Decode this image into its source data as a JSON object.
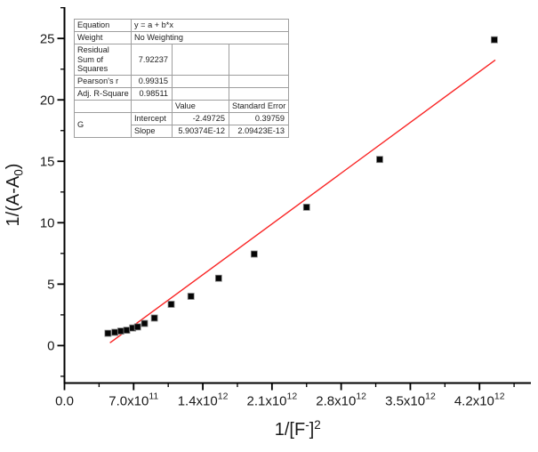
{
  "colors": {
    "fit_line": "#f92525",
    "marker_fill": "#050505",
    "marker_edge": "#8a8a8a",
    "axis": "#000000",
    "table_border": "#9e9e9e",
    "text": "#1a1a1a"
  },
  "stats_table": {
    "equation_label": "Equation",
    "equation_value": "y = a + b*x",
    "weight_label": "Weight",
    "weight_value": "No Weighting",
    "rss_label": "Residual Sum of Squares",
    "rss_value": "7.92237",
    "pearson_label": "Pearson's r",
    "pearson_value": "0.99315",
    "adj_r_label": "Adj. R-Square",
    "adj_r_value": "0.98511",
    "value_header": "Value",
    "stderr_header": "Standard Error",
    "dataset_label": "G",
    "intercept_label": "Intercept",
    "intercept_value": "-2.49725",
    "intercept_stderr": "0.39759",
    "slope_label": "Slope",
    "slope_value": "5.90374E-12",
    "slope_stderr": "2.09423E-13"
  },
  "chart_data": {
    "type": "scatter",
    "title": "",
    "legend": "none",
    "grid": false,
    "x_axis": {
      "label": "1/[F-]2",
      "label_parts": [
        {
          "t": "1/[F",
          "s": "n"
        },
        {
          "t": "-",
          "s": "sup"
        },
        {
          "t": "]",
          "s": "n"
        },
        {
          "t": "2",
          "s": "sup"
        }
      ],
      "min": 0,
      "max": 4720000000000.0,
      "major_tick_step": 700000000000.0,
      "minor_tick_step": 350000000000.0,
      "tick_labels": [
        {
          "mantissa": "0.0",
          "exponent": ""
        },
        {
          "mantissa": "7.0x10",
          "exponent": "11"
        },
        {
          "mantissa": "1.4x10",
          "exponent": "12"
        },
        {
          "mantissa": "2.1x10",
          "exponent": "12"
        },
        {
          "mantissa": "2.8x10",
          "exponent": "12"
        },
        {
          "mantissa": "3.5x10",
          "exponent": "12"
        },
        {
          "mantissa": "4.2x10",
          "exponent": "12"
        }
      ]
    },
    "y_axis": {
      "label": "1/(A-A0)",
      "label_parts": [
        {
          "t": "1/(A-A",
          "s": "n"
        },
        {
          "t": "0",
          "s": "sub"
        },
        {
          "t": ")",
          "s": "n"
        }
      ],
      "min": -3.05,
      "max": 27.55,
      "major_tick_step": 5,
      "minor_tick_step": 2.5,
      "tick_labels": [
        "0",
        "5",
        "10",
        "15",
        "20",
        "25"
      ]
    },
    "series": [
      {
        "name": "G",
        "marker": "filled-square",
        "points": [
          [
            440000000000.0,
            1.0
          ],
          [
            510000000000.0,
            1.08
          ],
          [
            570000000000.0,
            1.18
          ],
          [
            630000000000.0,
            1.25
          ],
          [
            690000000000.0,
            1.43
          ],
          [
            740000000000.0,
            1.52
          ],
          [
            810000000000.0,
            1.8
          ],
          [
            910000000000.0,
            2.24
          ],
          [
            1080000000000.0,
            3.36
          ],
          [
            1280000000000.0,
            4.01
          ],
          [
            1560000000000.0,
            5.48
          ],
          [
            1920000000000.0,
            7.45
          ],
          [
            2450000000000.0,
            11.26
          ],
          [
            3190000000000.0,
            15.15
          ],
          [
            4350000000000.0,
            24.89
          ]
        ]
      }
    ],
    "fit_line": {
      "equation": "y = a + b*x",
      "intercept": -2.49725,
      "slope": 5.90374e-12,
      "x_start": 460000000000.0,
      "x_end": 4360000000000.0
    }
  }
}
